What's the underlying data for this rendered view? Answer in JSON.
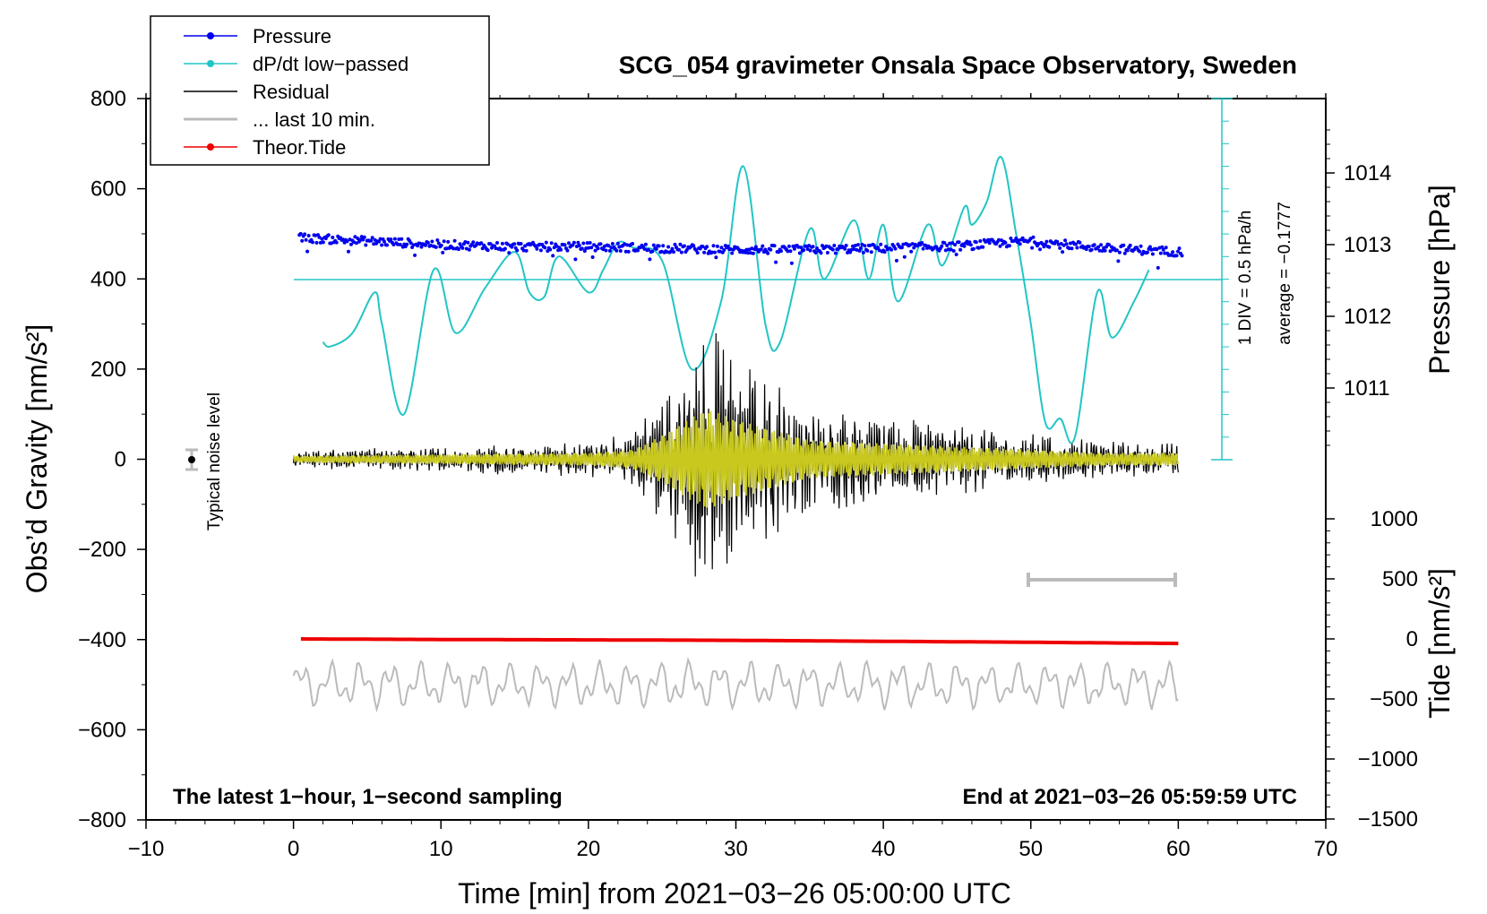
{
  "chart_data": {
    "type": "line",
    "title": "SCG_054 gravimeter Onsala Space Observatory, Sweden",
    "xlabel": "Time [min] from 2021−03−26 05:00:00 UTC",
    "ylabel_left": "Obs’d Gravity [nm/s²]",
    "ylabel_right_top": "Pressure [hPa]",
    "ylabel_right_bottom": "Tide [nm/s²]",
    "xlim": [
      -10,
      70
    ],
    "ylim": [
      -800,
      800
    ],
    "x_ticks": [
      "−10",
      "0",
      "10",
      "20",
      "30",
      "40",
      "50",
      "60",
      "70"
    ],
    "y_ticks_left": [
      "800",
      "600",
      "400",
      "200",
      "0",
      "−200",
      "−400",
      "−600",
      "−800"
    ],
    "pressure_ticks": [
      "1014",
      "1013",
      "1012",
      "1011"
    ],
    "tide_ticks": [
      "1000",
      "500",
      "0",
      "−500",
      "−1000",
      "−1500"
    ],
    "legend": [
      {
        "label": "Pressure",
        "color": "#0000ee",
        "marker": true
      },
      {
        "label": "dP/dt low−passed",
        "color": "#22c5c5",
        "marker": true
      },
      {
        "label": "Residual",
        "color": "#000000",
        "marker": false
      },
      {
        "label": "... last 10 min.",
        "color": "#bbbbbb",
        "marker": false
      },
      {
        "label": "Theor.Tide",
        "color": "#ee0000",
        "marker": true
      }
    ],
    "noise_label": "Typical noise level",
    "div_label": "1 DIV = 0.5 hPa/h",
    "average_label": "average = −0.1777",
    "footer_left": "The latest 1−hour, 1−second sampling",
    "footer_right": "End at 2021−03−26 05:59:59 UTC",
    "series": [
      {
        "name": "Pressure",
        "unit": "hPa",
        "x": [
          0,
          5,
          10,
          15,
          20,
          25,
          30,
          35,
          40,
          45,
          50,
          55,
          60
        ],
        "values": [
          1013.1,
          1013.05,
          1013.0,
          1012.97,
          1012.97,
          1012.95,
          1012.93,
          1012.93,
          1012.95,
          1012.98,
          1013.05,
          1012.95,
          1012.9
        ]
      },
      {
        "name": "dP/dt low-passed",
        "unit": "nm/s² plot scale",
        "x": [
          2,
          2.5,
          4,
          5.5,
          6,
          7.5,
          9.5,
          11,
          13,
          15,
          16,
          17,
          18,
          20,
          21,
          22,
          23,
          25,
          27,
          29,
          30.5,
          32,
          33,
          35,
          36,
          38,
          39,
          40,
          41,
          43,
          44,
          45.5,
          46,
          47,
          48,
          49,
          50,
          51,
          52,
          53,
          54.5,
          55.5,
          57,
          58
        ],
        "values": [
          260,
          250,
          280,
          370,
          300,
          100,
          420,
          280,
          380,
          460,
          370,
          360,
          450,
          370,
          420,
          480,
          470,
          440,
          200,
          350,
          650,
          300,
          260,
          510,
          400,
          530,
          400,
          520,
          350,
          520,
          430,
          560,
          520,
          570,
          670,
          500,
          300,
          80,
          90,
          50,
          370,
          270,
          350,
          420
        ]
      },
      {
        "name": "Residual",
        "unit": "nm/s²",
        "x": [
          0,
          10,
          20,
          23,
          25,
          28,
          30,
          35,
          40,
          45,
          50,
          55,
          60
        ],
        "values": [
          20,
          30,
          40,
          60,
          150,
          320,
          250,
          120,
          100,
          80,
          60,
          40,
          40
        ]
      },
      {
        "name": "... last 10 min.",
        "unit": "nm/s²",
        "x": [
          0,
          10,
          20,
          30,
          40,
          50,
          60
        ],
        "values": [
          -500,
          -500,
          -500,
          -500,
          -500,
          -500,
          -500
        ]
      },
      {
        "name": "Theor.Tide",
        "unit": "nm/s²",
        "x": [
          0,
          10,
          20,
          30,
          40,
          50,
          60
        ],
        "values": [
          0,
          -5,
          -8,
          -12,
          -20,
          -28,
          -38
        ]
      }
    ],
    "colors": {
      "pressure": "#0000ee",
      "dpdt": "#22c5c5",
      "residual": "#000000",
      "filtered": "#c8c81e",
      "last10": "#bbbbbb",
      "tide": "#ee0000"
    }
  }
}
